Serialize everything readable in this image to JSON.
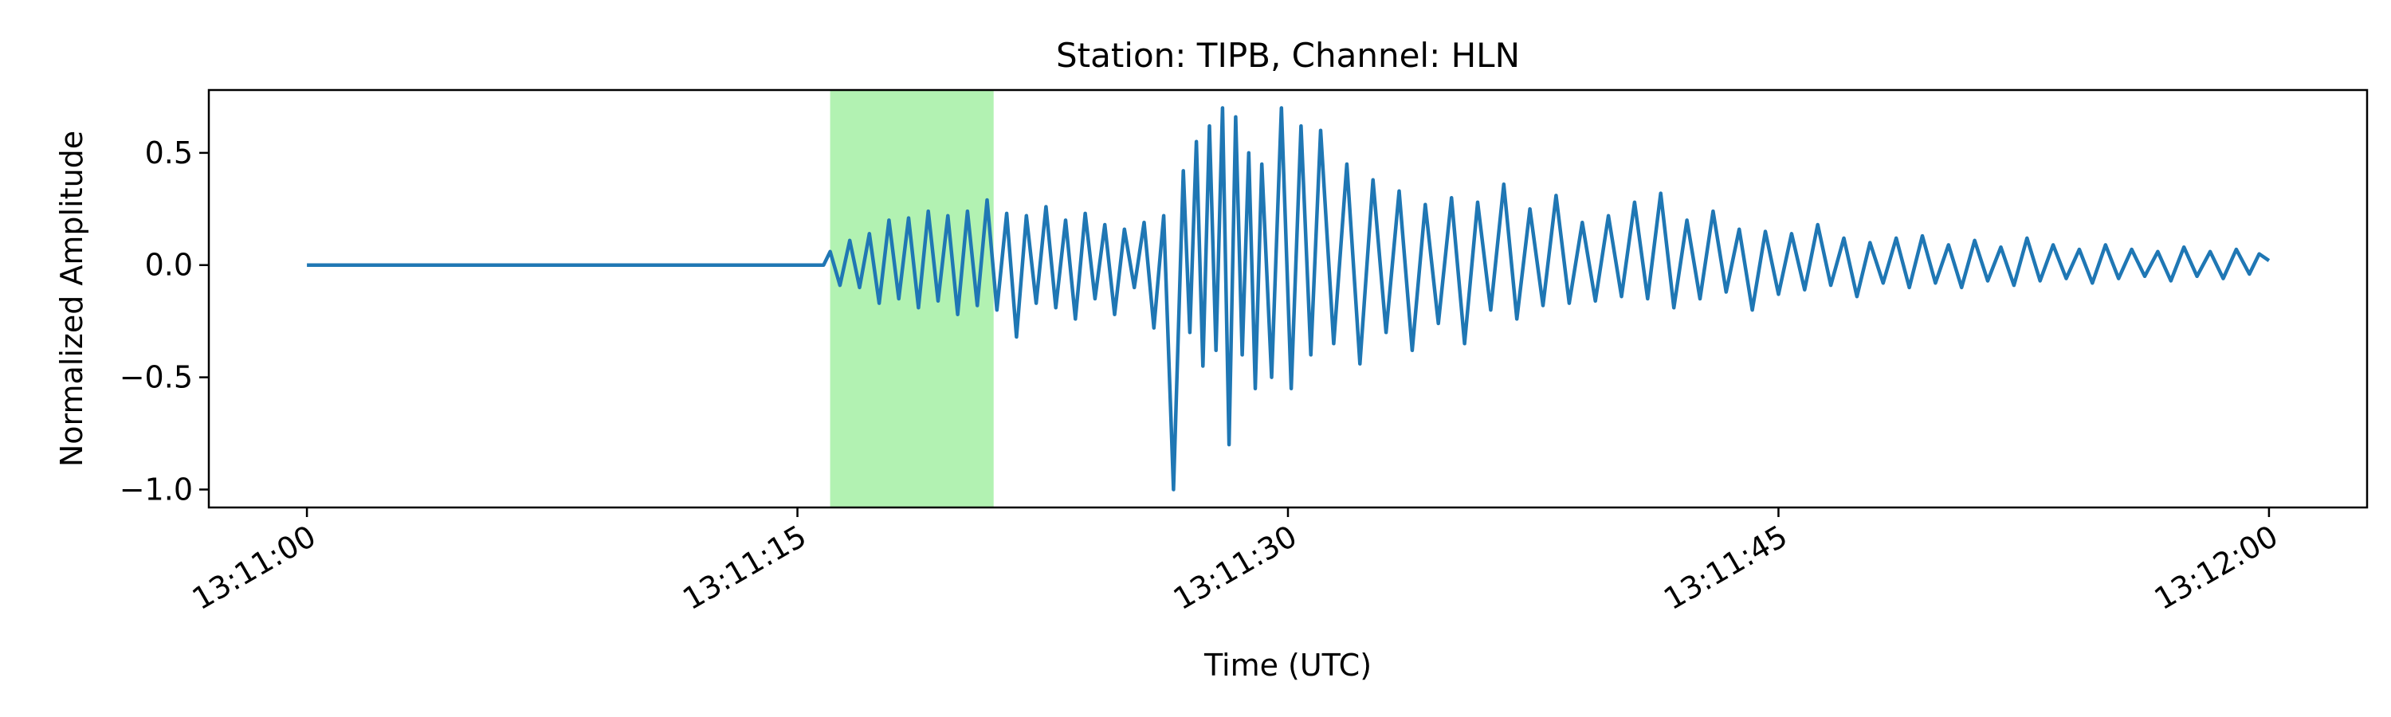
{
  "chart_data": {
    "type": "line",
    "title": "Station: TIPB, Channel: HLN",
    "xlabel": "Time (UTC)",
    "ylabel": "Normalized Amplitude",
    "x_ticks": [
      "13:11:00",
      "13:11:15",
      "13:11:30",
      "13:11:45",
      "13:12:00"
    ],
    "y_ticks": [
      "0.5",
      "0.0",
      "−0.5",
      "−1.0"
    ],
    "x_range_seconds_after_13_11_00": [
      -3,
      63
    ],
    "ylim": [
      -1.08,
      0.78
    ],
    "grid": false,
    "legend": "none",
    "highlight_window": {
      "start": "13:11:16.0",
      "end": "13:11:21.0",
      "color": "#b2f2b2"
    },
    "series": [
      {
        "color": "#1f77b4",
        "points": [
          [
            "13:11:00.0",
            0.0
          ],
          [
            "13:11:15.8",
            0.0
          ],
          [
            "13:11:16.0",
            0.06
          ],
          [
            "13:11:16.3",
            -0.09
          ],
          [
            "13:11:16.6",
            0.11
          ],
          [
            "13:11:16.9",
            -0.1
          ],
          [
            "13:11:17.2",
            0.14
          ],
          [
            "13:11:17.5",
            -0.17
          ],
          [
            "13:11:17.8",
            0.2
          ],
          [
            "13:11:18.1",
            -0.15
          ],
          [
            "13:11:18.4",
            0.21
          ],
          [
            "13:11:18.7",
            -0.19
          ],
          [
            "13:11:19.0",
            0.24
          ],
          [
            "13:11:19.3",
            -0.16
          ],
          [
            "13:11:19.6",
            0.22
          ],
          [
            "13:11:19.9",
            -0.22
          ],
          [
            "13:11:20.2",
            0.24
          ],
          [
            "13:11:20.5",
            -0.18
          ],
          [
            "13:11:20.8",
            0.29
          ],
          [
            "13:11:21.1",
            -0.2
          ],
          [
            "13:11:21.4",
            0.23
          ],
          [
            "13:11:21.7",
            -0.32
          ],
          [
            "13:11:22.0",
            0.22
          ],
          [
            "13:11:22.3",
            -0.17
          ],
          [
            "13:11:22.6",
            0.26
          ],
          [
            "13:11:22.9",
            -0.19
          ],
          [
            "13:11:23.2",
            0.2
          ],
          [
            "13:11:23.5",
            -0.24
          ],
          [
            "13:11:23.8",
            0.23
          ],
          [
            "13:11:24.1",
            -0.15
          ],
          [
            "13:11:24.4",
            0.18
          ],
          [
            "13:11:24.7",
            -0.22
          ],
          [
            "13:11:25.0",
            0.16
          ],
          [
            "13:11:25.3",
            -0.1
          ],
          [
            "13:11:25.6",
            0.19
          ],
          [
            "13:11:25.9",
            -0.28
          ],
          [
            "13:11:26.2",
            0.22
          ],
          [
            "13:11:26.5",
            -1.0
          ],
          [
            "13:11:26.8",
            0.42
          ],
          [
            "13:11:27.0",
            -0.3
          ],
          [
            "13:11:27.2",
            0.55
          ],
          [
            "13:11:27.4",
            -0.45
          ],
          [
            "13:11:27.6",
            0.62
          ],
          [
            "13:11:27.8",
            -0.38
          ],
          [
            "13:11:28.0",
            0.7
          ],
          [
            "13:11:28.2",
            -0.8
          ],
          [
            "13:11:28.4",
            0.66
          ],
          [
            "13:11:28.6",
            -0.4
          ],
          [
            "13:11:28.8",
            0.5
          ],
          [
            "13:11:29.0",
            -0.55
          ],
          [
            "13:11:29.2",
            0.45
          ],
          [
            "13:11:29.5",
            -0.5
          ],
          [
            "13:11:29.8",
            0.7
          ],
          [
            "13:11:30.1",
            -0.55
          ],
          [
            "13:11:30.4",
            0.62
          ],
          [
            "13:11:30.7",
            -0.4
          ],
          [
            "13:11:31.0",
            0.6
          ],
          [
            "13:11:31.4",
            -0.35
          ],
          [
            "13:11:31.8",
            0.45
          ],
          [
            "13:11:32.2",
            -0.44
          ],
          [
            "13:11:32.6",
            0.38
          ],
          [
            "13:11:33.0",
            -0.3
          ],
          [
            "13:11:33.4",
            0.33
          ],
          [
            "13:11:33.8",
            -0.38
          ],
          [
            "13:11:34.2",
            0.27
          ],
          [
            "13:11:34.6",
            -0.26
          ],
          [
            "13:11:35.0",
            0.3
          ],
          [
            "13:11:35.4",
            -0.35
          ],
          [
            "13:11:35.8",
            0.28
          ],
          [
            "13:11:36.2",
            -0.2
          ],
          [
            "13:11:36.6",
            0.36
          ],
          [
            "13:11:37.0",
            -0.24
          ],
          [
            "13:11:37.4",
            0.25
          ],
          [
            "13:11:37.8",
            -0.18
          ],
          [
            "13:11:38.2",
            0.31
          ],
          [
            "13:11:38.6",
            -0.17
          ],
          [
            "13:11:39.0",
            0.19
          ],
          [
            "13:11:39.4",
            -0.16
          ],
          [
            "13:11:39.8",
            0.22
          ],
          [
            "13:11:40.2",
            -0.14
          ],
          [
            "13:11:40.6",
            0.28
          ],
          [
            "13:11:41.0",
            -0.15
          ],
          [
            "13:11:41.4",
            0.32
          ],
          [
            "13:11:41.8",
            -0.19
          ],
          [
            "13:11:42.2",
            0.2
          ],
          [
            "13:11:42.6",
            -0.15
          ],
          [
            "13:11:43.0",
            0.24
          ],
          [
            "13:11:43.4",
            -0.12
          ],
          [
            "13:11:43.8",
            0.16
          ],
          [
            "13:11:44.2",
            -0.2
          ],
          [
            "13:11:44.6",
            0.15
          ],
          [
            "13:11:45.0",
            -0.13
          ],
          [
            "13:11:45.4",
            0.14
          ],
          [
            "13:11:45.8",
            -0.11
          ],
          [
            "13:11:46.2",
            0.18
          ],
          [
            "13:11:46.6",
            -0.09
          ],
          [
            "13:11:47.0",
            0.12
          ],
          [
            "13:11:47.4",
            -0.14
          ],
          [
            "13:11:47.8",
            0.1
          ],
          [
            "13:11:48.2",
            -0.08
          ],
          [
            "13:11:48.6",
            0.12
          ],
          [
            "13:11:49.0",
            -0.1
          ],
          [
            "13:11:49.4",
            0.13
          ],
          [
            "13:11:49.8",
            -0.08
          ],
          [
            "13:11:50.2",
            0.09
          ],
          [
            "13:11:50.6",
            -0.1
          ],
          [
            "13:11:51.0",
            0.11
          ],
          [
            "13:11:51.4",
            -0.07
          ],
          [
            "13:11:51.8",
            0.08
          ],
          [
            "13:11:52.2",
            -0.09
          ],
          [
            "13:11:52.6",
            0.12
          ],
          [
            "13:11:53.0",
            -0.07
          ],
          [
            "13:11:53.4",
            0.09
          ],
          [
            "13:11:53.8",
            -0.06
          ],
          [
            "13:11:54.2",
            0.07
          ],
          [
            "13:11:54.6",
            -0.08
          ],
          [
            "13:11:55.0",
            0.09
          ],
          [
            "13:11:55.4",
            -0.06
          ],
          [
            "13:11:55.8",
            0.07
          ],
          [
            "13:11:56.2",
            -0.05
          ],
          [
            "13:11:56.6",
            0.06
          ],
          [
            "13:11:57.0",
            -0.07
          ],
          [
            "13:11:57.4",
            0.08
          ],
          [
            "13:11:57.8",
            -0.05
          ],
          [
            "13:11:58.2",
            0.06
          ],
          [
            "13:11:58.6",
            -0.06
          ],
          [
            "13:11:59.0",
            0.07
          ],
          [
            "13:11:59.4",
            -0.04
          ],
          [
            "13:11:59.7",
            0.05
          ],
          [
            "13:12:00.0",
            0.02
          ]
        ]
      }
    ]
  }
}
